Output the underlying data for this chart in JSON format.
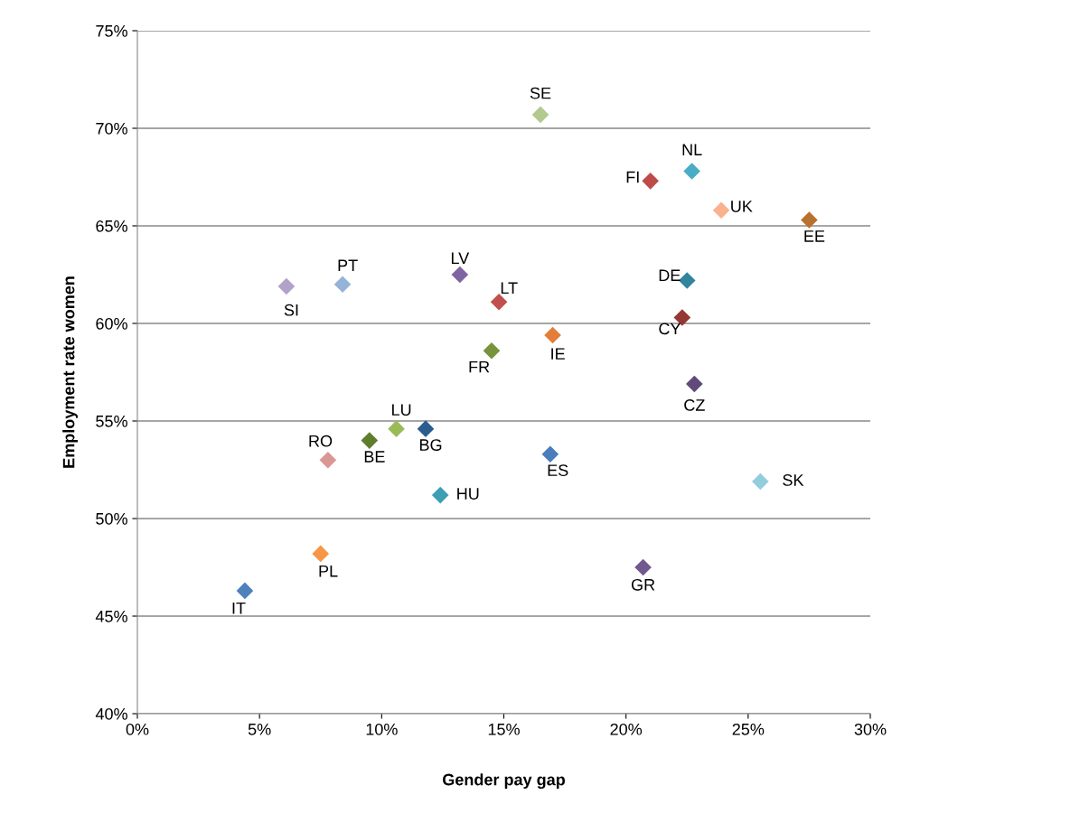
{
  "chart_data": {
    "type": "scatter",
    "xlabel": "Gender pay gap",
    "ylabel": "Employment rate women",
    "x": [
      16.5,
      21.0,
      22.7,
      23.9,
      27.5,
      22.5,
      22.3,
      22.8,
      25.5,
      20.7,
      16.9,
      17.0,
      14.5,
      14.8,
      13.2,
      12.4,
      11.8,
      10.6,
      9.5,
      7.8,
      7.5,
      4.4,
      6.1,
      8.4
    ],
    "values": [
      70.7,
      67.3,
      67.8,
      65.8,
      65.3,
      62.2,
      60.3,
      56.9,
      51.9,
      47.5,
      53.3,
      59.4,
      58.6,
      61.1,
      62.5,
      51.2,
      54.6,
      54.6,
      54.0,
      53.0,
      48.2,
      46.3,
      61.9,
      62.0
    ],
    "colors": [
      "#b3c98f",
      "#be4b48",
      "#4bacc6",
      "#f9b28c",
      "#b8702e",
      "#31859c",
      "#953735",
      "#604a7b",
      "#93cddd",
      "#71588f",
      "#4a7ebb",
      "#e27e38",
      "#77933c",
      "#c0504d",
      "#8064a2",
      "#3c9fb4",
      "#2c5d8f",
      "#9bbb59",
      "#5e7e2c",
      "#d99694",
      "#f79646",
      "#4f81bd",
      "#b3a2c7",
      "#95b3d7"
    ],
    "marker": "diamond",
    "annotations": [
      {
        "text": "SE",
        "x": 16.5,
        "y": 70.7
      },
      {
        "text": "FI",
        "x": 21.0,
        "y": 67.3
      },
      {
        "text": "NL",
        "x": 22.7,
        "y": 67.8
      },
      {
        "text": "UK",
        "x": 23.9,
        "y": 65.8
      },
      {
        "text": "EE",
        "x": 27.5,
        "y": 65.3
      },
      {
        "text": "DE",
        "x": 22.5,
        "y": 62.2
      },
      {
        "text": "CY",
        "x": 22.3,
        "y": 60.3
      },
      {
        "text": "CZ",
        "x": 22.8,
        "y": 56.9
      },
      {
        "text": "SK",
        "x": 25.5,
        "y": 51.9
      },
      {
        "text": "GR",
        "x": 20.7,
        "y": 47.5
      },
      {
        "text": "ES",
        "x": 16.9,
        "y": 53.3
      },
      {
        "text": "IE",
        "x": 17.0,
        "y": 59.4
      },
      {
        "text": "FR",
        "x": 14.5,
        "y": 58.6
      },
      {
        "text": "LT",
        "x": 14.8,
        "y": 61.1
      },
      {
        "text": "LV",
        "x": 13.2,
        "y": 62.5
      },
      {
        "text": "HU",
        "x": 12.4,
        "y": 51.2
      },
      {
        "text": "BG",
        "x": 11.8,
        "y": 54.6
      },
      {
        "text": "LU",
        "x": 10.6,
        "y": 54.6
      },
      {
        "text": "BE",
        "x": 9.5,
        "y": 54.0
      },
      {
        "text": "RO",
        "x": 7.8,
        "y": 53.0
      },
      {
        "text": "PL",
        "x": 7.5,
        "y": 48.2
      },
      {
        "text": "IT",
        "x": 4.4,
        "y": 46.3
      },
      {
        "text": "SI",
        "x": 6.1,
        "y": 61.9
      },
      {
        "text": "PT",
        "x": 8.4,
        "y": 62.0
      }
    ],
    "xlim": [
      0,
      30
    ],
    "ylim": [
      40,
      75
    ],
    "xticks": [
      {
        "value": 0,
        "label": "0%"
      },
      {
        "value": 5,
        "label": "5%"
      },
      {
        "value": 10,
        "label": "10%"
      },
      {
        "value": 15,
        "label": "15%"
      },
      {
        "value": 20,
        "label": "20%"
      },
      {
        "value": 25,
        "label": "25%"
      },
      {
        "value": 30,
        "label": "30%"
      }
    ],
    "yticks": [
      {
        "value": 40,
        "label": "40%"
      },
      {
        "value": 45,
        "label": "45%"
      },
      {
        "value": 50,
        "label": "50%"
      },
      {
        "value": 55,
        "label": "55%"
      },
      {
        "value": 60,
        "label": "60%"
      },
      {
        "value": 65,
        "label": "65%"
      },
      {
        "value": 70,
        "label": "70%"
      },
      {
        "value": 75,
        "label": "75%"
      }
    ],
    "grid": "y",
    "legend": false
  }
}
